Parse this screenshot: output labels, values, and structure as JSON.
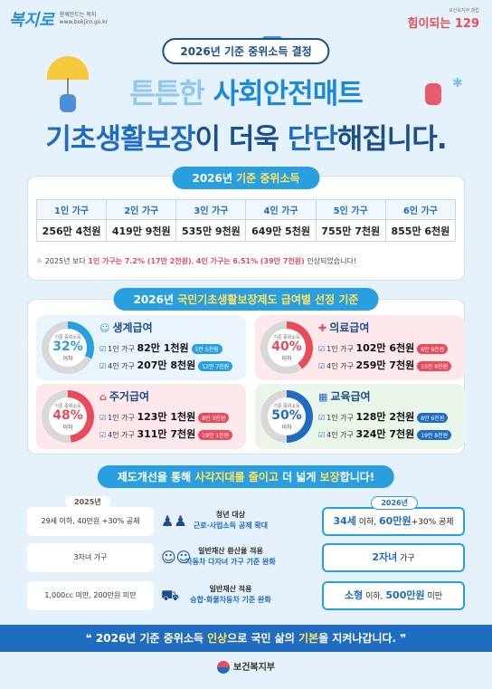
{
  "header": {
    "logo_main": "복지로",
    "logo_tagline": "함께만드는 복지",
    "logo_url": "www.bokjiro.go.kr",
    "right_small": "보건복지부 창립",
    "right_big": "힘이되는 129"
  },
  "banner": "2026년 기준 중위소득 결정",
  "headline": {
    "line1_a": "튼튼한 ",
    "line1_b": "사회안전매트",
    "line2_a": "기초생활보장",
    "line2_b": "이 더욱 ",
    "line2_c": "단단",
    "line2_d": "해집니다."
  },
  "income": {
    "title_a": "2026년 ",
    "title_b": "기준 중위소득",
    "headers": [
      "1인 가구",
      "2인 가구",
      "3인 가구",
      "4인 가구",
      "5인 가구",
      "6인 가구"
    ],
    "values": [
      "256만 4천원",
      "419만 9천원",
      "535만 9천원",
      "649만 5천원",
      "755만 7천원",
      "855만 6천원"
    ],
    "note_a": "2025년 보다 ",
    "note_b": "1인 가구는 7.2% (17만 2천원)",
    "note_c": ", ",
    "note_d": "4인 가구는 6.51% (39만 7천원)",
    "note_e": " 인상되었습니다!"
  },
  "benefits": {
    "title_a": "2026년 ",
    "title_b": "국민기초생활보장제도 급여별 선정 기준",
    "cards": [
      {
        "name": "생계급여",
        "donut_label": "기준 중위소득",
        "pct": "32%",
        "pct_value": 32,
        "pct_sub": "이하",
        "color": "#2a9fe0",
        "r1_pre": "1인 가구 ",
        "r1_val": "82만 1천원",
        "r1_badge": "5만 5천원",
        "r2_pre": "4인 가구 ",
        "r2_val": "207만 8천원",
        "r2_badge": "12만 7천원"
      },
      {
        "name": "의료급여",
        "donut_label": "기준 중위소득",
        "pct": "40%",
        "pct_value": 40,
        "pct_sub": "이하",
        "color": "#e84c5a",
        "r1_pre": "1인 가구 ",
        "r1_val": "102만 6천원",
        "r1_badge": "6만 9천원",
        "r2_pre": "4인 가구 ",
        "r2_val": "259만 7천원",
        "r2_badge": "15만 9천원"
      },
      {
        "name": "주거급여",
        "donut_label": "기준 중위소득",
        "pct": "48%",
        "pct_value": 48,
        "pct_sub": "이하",
        "color": "#e84c5a",
        "r1_pre": "1인 가구 ",
        "r1_val": "123만 1천원",
        "r1_badge": "8만 3천원",
        "r2_pre": "4인 가구 ",
        "r2_val": "311만 7천원",
        "r2_badge": "19만 1천원"
      },
      {
        "name": "교육급여",
        "donut_label": "기준 중위소득",
        "pct": "50%",
        "pct_value": 50,
        "pct_sub": "이하",
        "color": "#1f6cc0",
        "r1_pre": "1인 가구 ",
        "r1_val": "128만 2천원",
        "r1_badge": "8만 6천원",
        "r2_pre": "4인 가구 ",
        "r2_val": "324만 7천원",
        "r2_badge": "19만 8천원"
      }
    ]
  },
  "improve": {
    "title_a": "제도개선을 통해 ",
    "title_b": "사각지대를 줄이고",
    "title_c": " 더 넓게 ",
    "title_d": "보장",
    "title_e": "합니다!",
    "year_old": "2025년",
    "year_new": "2026년",
    "rows": [
      {
        "old": "29세 이하, 40만원 +30% 공제",
        "mid_a": "청년 대상",
        "mid_b": "근로·사업소득 공제 확대",
        "new_a": "34세",
        "new_b": " 이하, ",
        "new_c": "60만원",
        "new_d": "+30% 공제"
      },
      {
        "old": "3자녀 가구",
        "mid_a": "일반재산 환산율 적용",
        "mid_b": "자동차 다자녀 가구 기준 완화",
        "new_a": "2자녀",
        "new_b": " 가구",
        "new_c": "",
        "new_d": ""
      },
      {
        "old": "1,000cc 미만, 200만원 미만",
        "mid_a": "일반재산 적용",
        "mid_b": "승합·화물자동차 기준 완화",
        "new_a": "소형",
        "new_b": " 이하, ",
        "new_c": "500만원",
        "new_d": " 미만"
      }
    ]
  },
  "footer": {
    "text_a": "2026년 기준 중위소득 ",
    "text_b": "인상",
    "text_c": "으로 국민 삶의 ",
    "text_d": "기본",
    "text_e": "을 지켜나갑니다.",
    "ministry": "보건복지부"
  },
  "colors": {
    "primary": "#1f6cc0",
    "accent_blue": "#2a9fe0",
    "accent_red": "#e84c5a",
    "background": "#e6f2fb"
  },
  "icons": [
    "umbrella-icon",
    "person-icon",
    "medical-icon",
    "house-icon",
    "school-icon",
    "youth-icon",
    "family-icon",
    "car-icon",
    "check-icon"
  ]
}
